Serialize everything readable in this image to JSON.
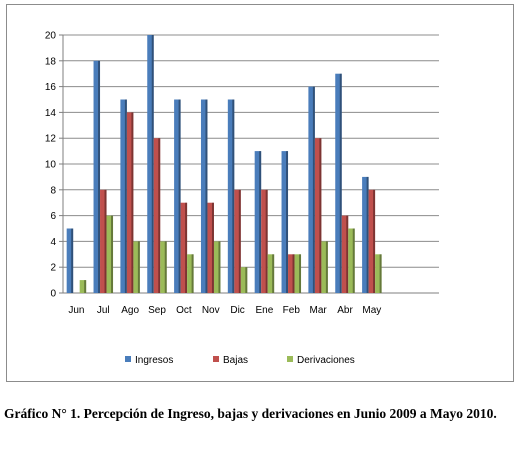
{
  "chart_data": {
    "type": "bar",
    "categories": [
      "Jun",
      "Jul",
      "Ago",
      "Sep",
      "Oct",
      "Nov",
      "Dic",
      "Ene",
      "Feb",
      "Mar",
      "Abr",
      "May"
    ],
    "series": [
      {
        "name": "Ingresos",
        "values": [
          5,
          18,
          15,
          20,
          15,
          15,
          15,
          11,
          11,
          16,
          17,
          9
        ],
        "color": "#4a7dbb"
      },
      {
        "name": "Bajas",
        "values": [
          0,
          8,
          14,
          12,
          7,
          7,
          8,
          8,
          3,
          12,
          6,
          8
        ],
        "color": "#c0504d"
      },
      {
        "name": "Derivaciones",
        "values": [
          1,
          6,
          4,
          4,
          3,
          4,
          2,
          3,
          3,
          4,
          5,
          3
        ],
        "color": "#9bbb59"
      }
    ],
    "ylim": [
      0,
      20
    ],
    "yticks": [
      "0",
      "2",
      "4",
      "6",
      "8",
      "10",
      "12",
      "14",
      "16",
      "18",
      "20"
    ],
    "grid": true,
    "legend_position": "bottom"
  },
  "caption": "Gráfico N° 1. Percepción de Ingreso, bajas y derivaciones en Junio 2009 a Mayo 2010."
}
